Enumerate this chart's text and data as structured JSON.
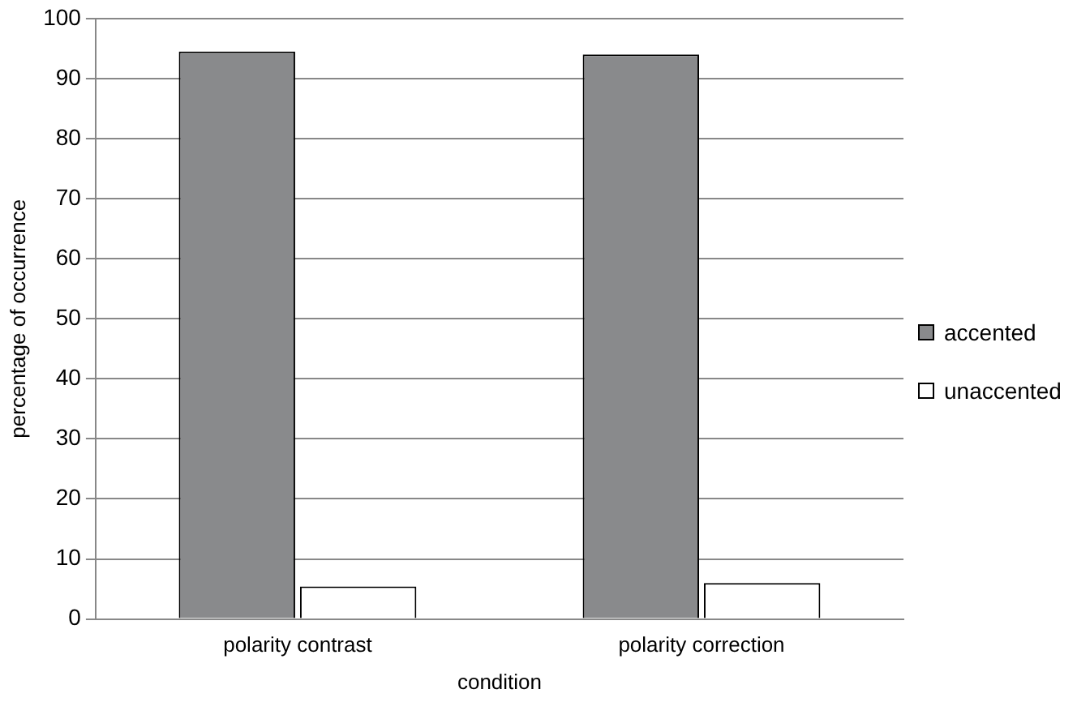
{
  "chart_data": {
    "type": "bar",
    "xlabel": "condition",
    "ylabel": "percentage of occurrence",
    "categories": [
      "polarity contrast",
      "polarity correction"
    ],
    "series": [
      {
        "name": "accented",
        "color": "#898a8c",
        "values": [
          94.5,
          94
        ]
      },
      {
        "name": "unaccented",
        "color": "#ffffff",
        "values": [
          5.4,
          6
        ]
      }
    ],
    "ylim": [
      0,
      100
    ],
    "yticks": [
      0,
      10,
      20,
      30,
      40,
      50,
      60,
      70,
      80,
      90,
      100
    ],
    "grid": "y",
    "legend": "right"
  }
}
